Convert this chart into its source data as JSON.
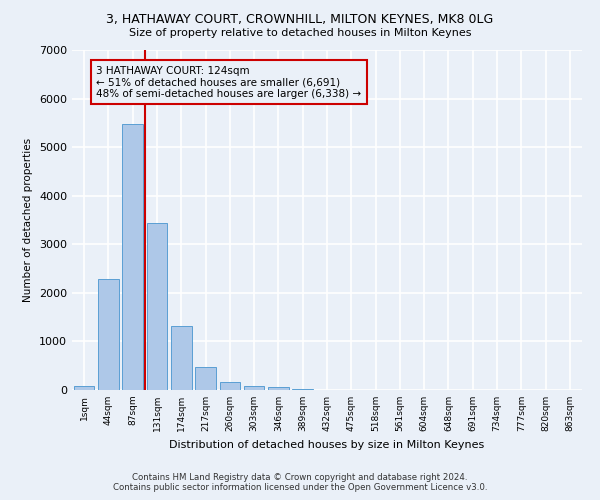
{
  "title_line1": "3, HATHAWAY COURT, CROWNHILL, MILTON KEYNES, MK8 0LG",
  "title_line2": "Size of property relative to detached houses in Milton Keynes",
  "xlabel": "Distribution of detached houses by size in Milton Keynes",
  "ylabel": "Number of detached properties",
  "footer_line1": "Contains HM Land Registry data © Crown copyright and database right 2024.",
  "footer_line2": "Contains public sector information licensed under the Open Government Licence v3.0.",
  "bar_labels": [
    "1sqm",
    "44sqm",
    "87sqm",
    "131sqm",
    "174sqm",
    "217sqm",
    "260sqm",
    "303sqm",
    "346sqm",
    "389sqm",
    "432sqm",
    "475sqm",
    "518sqm",
    "561sqm",
    "604sqm",
    "648sqm",
    "691sqm",
    "734sqm",
    "777sqm",
    "820sqm",
    "863sqm"
  ],
  "bar_values": [
    80,
    2280,
    5480,
    3430,
    1310,
    470,
    165,
    90,
    55,
    30,
    0,
    0,
    0,
    0,
    0,
    0,
    0,
    0,
    0,
    0,
    0
  ],
  "bar_color": "#aec8e8",
  "bar_edgecolor": "#5a9fd4",
  "ylim": [
    0,
    7000
  ],
  "yticks": [
    0,
    1000,
    2000,
    3000,
    4000,
    5000,
    6000,
    7000
  ],
  "vline_x": 2.5,
  "vline_color": "#cc0000",
  "annotation_text": "3 HATHAWAY COURT: 124sqm\n← 51% of detached houses are smaller (6,691)\n48% of semi-detached houses are larger (6,338) →",
  "bg_color": "#eaf0f8",
  "grid_color": "#ffffff"
}
